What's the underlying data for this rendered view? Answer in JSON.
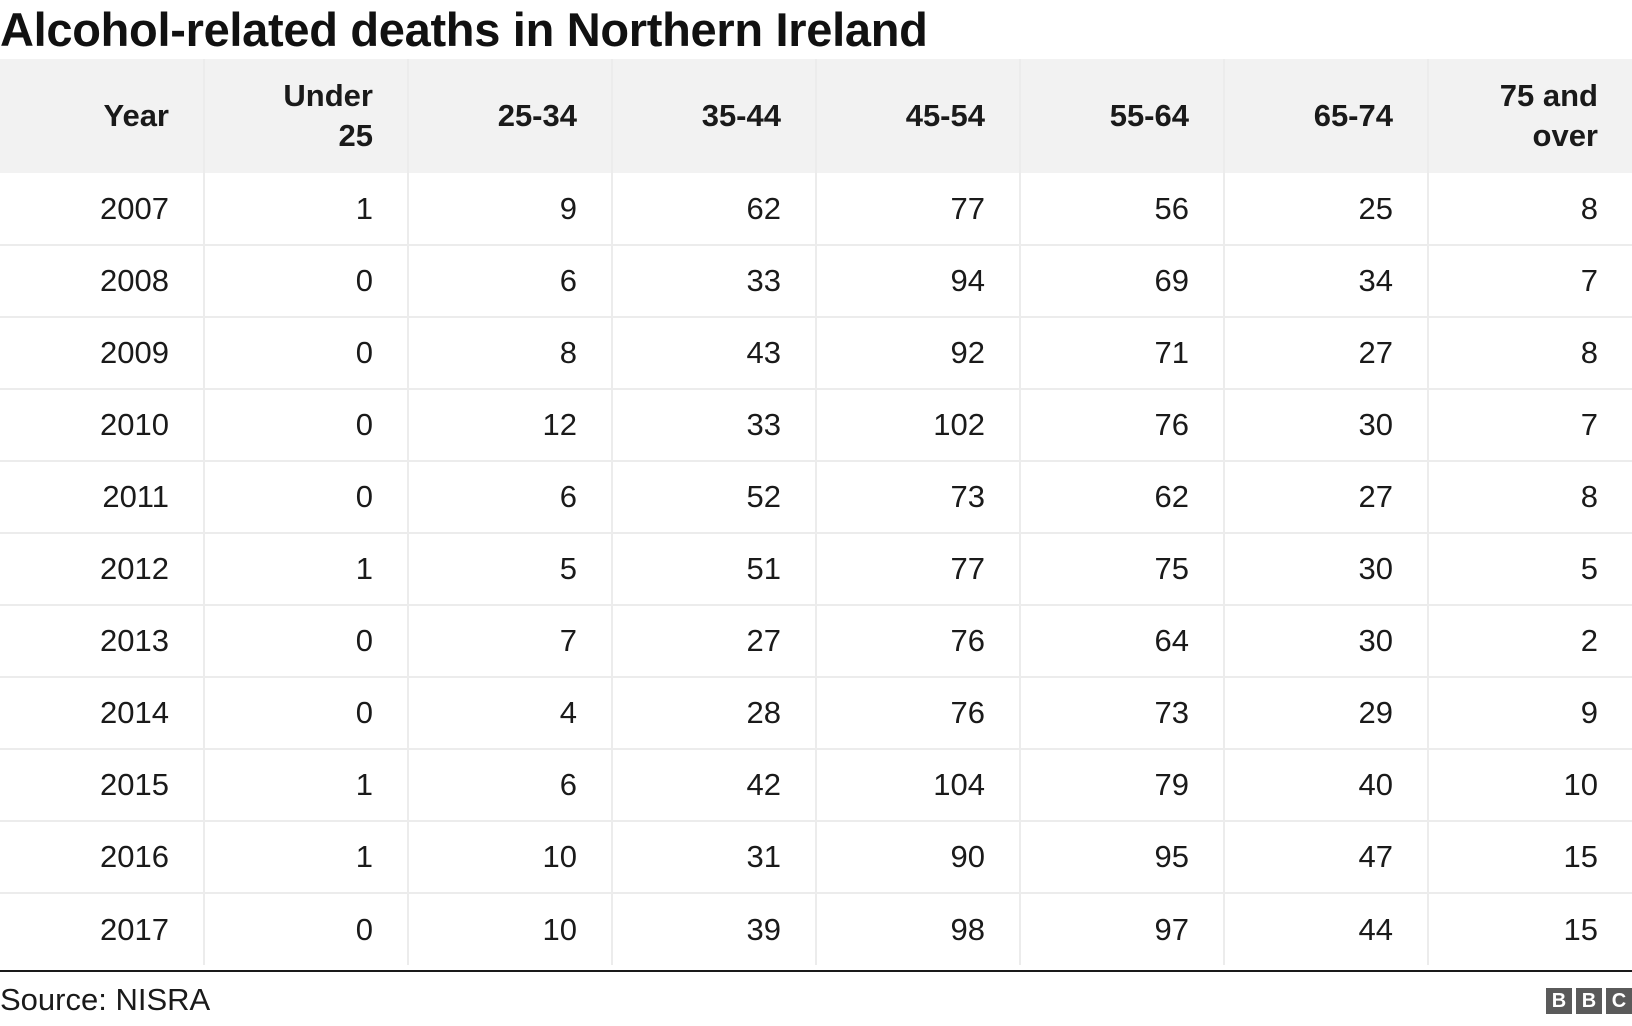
{
  "title": "Alcohol-related deaths in Northern Ireland",
  "source": "Source: NISRA",
  "logo": [
    "B",
    "B",
    "C"
  ],
  "chart_data": {
    "type": "table",
    "title": "Alcohol-related deaths in Northern Ireland",
    "columns": [
      [
        "Year"
      ],
      [
        "Under",
        "25"
      ],
      [
        "25-34"
      ],
      [
        "35-44"
      ],
      [
        "45-54"
      ],
      [
        "55-64"
      ],
      [
        "65-74"
      ],
      [
        "75 and",
        "over"
      ]
    ],
    "rows": [
      [
        "2007",
        "1",
        "9",
        "62",
        "77",
        "56",
        "25",
        "8"
      ],
      [
        "2008",
        "0",
        "6",
        "33",
        "94",
        "69",
        "34",
        "7"
      ],
      [
        "2009",
        "0",
        "8",
        "43",
        "92",
        "71",
        "27",
        "8"
      ],
      [
        "2010",
        "0",
        "12",
        "33",
        "102",
        "76",
        "30",
        "7"
      ],
      [
        "2011",
        "0",
        "6",
        "52",
        "73",
        "62",
        "27",
        "8"
      ],
      [
        "2012",
        "1",
        "5",
        "51",
        "77",
        "75",
        "30",
        "5"
      ],
      [
        "2013",
        "0",
        "7",
        "27",
        "76",
        "64",
        "30",
        "2"
      ],
      [
        "2014",
        "0",
        "4",
        "28",
        "76",
        "73",
        "29",
        "9"
      ],
      [
        "2015",
        "1",
        "6",
        "42",
        "104",
        "79",
        "40",
        "10"
      ],
      [
        "2016",
        "1",
        "10",
        "31",
        "90",
        "95",
        "47",
        "15"
      ],
      [
        "2017",
        "0",
        "10",
        "39",
        "98",
        "97",
        "44",
        "15"
      ]
    ],
    "source": "Source: NISRA"
  }
}
